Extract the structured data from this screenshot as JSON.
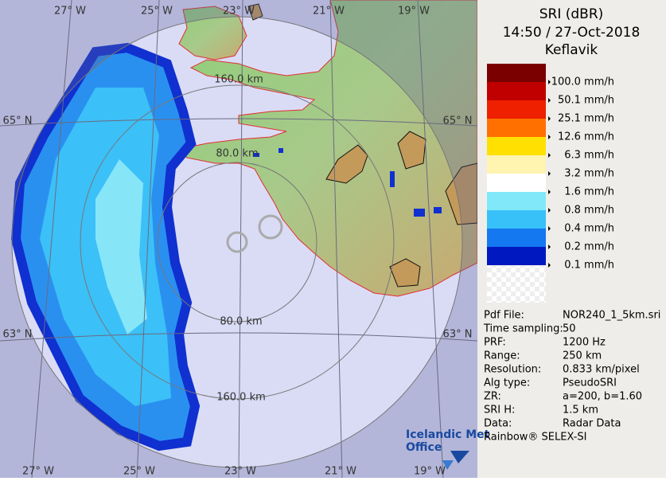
{
  "map": {
    "lon_top": [
      "27° W",
      "25° W",
      "23° W",
      "21° W",
      "19° W"
    ],
    "lon_bottom": [
      "27° W",
      "25° W",
      "23° W",
      "21° W",
      "19° W"
    ],
    "lat_left": [
      "65° N",
      "63° N"
    ],
    "lat_right": [
      "65° N",
      "63° N"
    ],
    "range_labels": [
      "160.0 km",
      "80.0 km",
      "80.0 km",
      "160.0 km"
    ]
  },
  "panel": {
    "title": "SRI (dBR)",
    "time": "14:50 / 27-Oct-2018",
    "site": "Keflavik",
    "legend": [
      "100.0 mm/h",
      "50.1 mm/h",
      "25.1 mm/h",
      "12.6 mm/h",
      "6.3 mm/h",
      "3.2 mm/h",
      "1.6 mm/h",
      "0.8 mm/h",
      "0.4 mm/h",
      "0.2 mm/h",
      "0.1 mm/h"
    ],
    "info": [
      [
        "Pdf File:",
        "NOR240_1_5km.sri"
      ],
      [
        "Time sampling:",
        "50"
      ],
      [
        "PRF:",
        "1200 Hz"
      ],
      [
        "Range:",
        "250 km"
      ],
      [
        "Resolution:",
        "0.833 km/pixel"
      ],
      [
        "Alg type:",
        "PseudoSRI"
      ],
      [
        "ZR:",
        "a=200, b=1.60"
      ],
      [
        "SRI H:",
        "1.5 km"
      ],
      [
        "Data:",
        "Radar Data"
      ]
    ],
    "footer": "Rainbow® SELEX-SI"
  },
  "logo": [
    "Icelandic Met",
    "Office"
  ]
}
